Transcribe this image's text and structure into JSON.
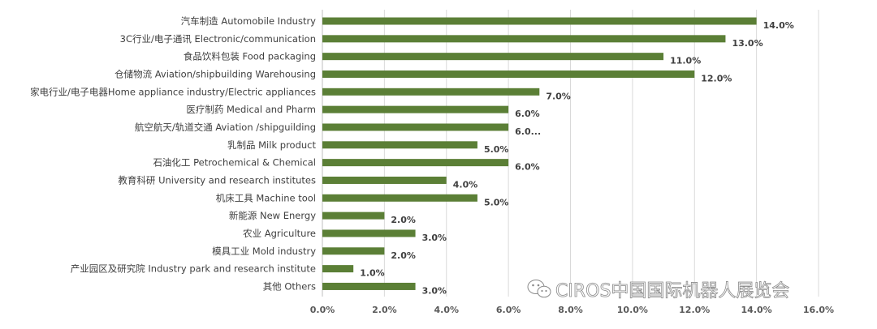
{
  "chart_data": {
    "type": "bar",
    "orientation": "horizontal",
    "categories": [
      "汽车制造 Automobile Industry",
      "3C行业/电子通讯 Electronic/communication",
      "食品饮料包装 Food packaging",
      "仓储物流 Aviation/shipbuilding Warehousing",
      "家电行业/电子电器Home appliance industry/Electric appliances",
      "医疗制药 Medical and Pharm",
      "航空航天/轨道交通  Aviation /shipguilding",
      "乳制品 Milk product",
      "石油化工 Petrochemical & Chemical",
      "教育科研 University and research institutes",
      "机床工具 Machine tool",
      "新能源  New Energy",
      "农业  Agriculture",
      "模具工业 Mold industry",
      "产业园区及研究院 Industry park and research institute",
      "其他 Others"
    ],
    "values": [
      14.0,
      13.0,
      11.0,
      12.0,
      7.0,
      6.0,
      6.0,
      5.0,
      6.0,
      4.0,
      5.0,
      2.0,
      3.0,
      2.0,
      1.0,
      3.0
    ],
    "data_labels": [
      "14.0%",
      "13.0%",
      "11.0%",
      "12.0%",
      "7.0%",
      "6.0%",
      "6.0...",
      "5.0%",
      "6.0%",
      "4.0%",
      "5.0%",
      "2.0%",
      "3.0%",
      "2.0%",
      "1.0%",
      "3.0%"
    ],
    "xlim": [
      0,
      16
    ],
    "x_ticks": [
      "0.0%",
      "2.0%",
      "4.0%",
      "6.0%",
      "8.0%",
      "10.0%",
      "12.0%",
      "14.0%",
      "16.0%"
    ],
    "grid": true,
    "title": "",
    "xlabel": "",
    "ylabel": ""
  },
  "colors": {
    "bar": "#5b7f36",
    "grid": "#d9d9d9",
    "text": "#404040"
  },
  "watermark": {
    "icon": "wechat-icon",
    "text": "CIROS中国国际机器人展览会"
  }
}
